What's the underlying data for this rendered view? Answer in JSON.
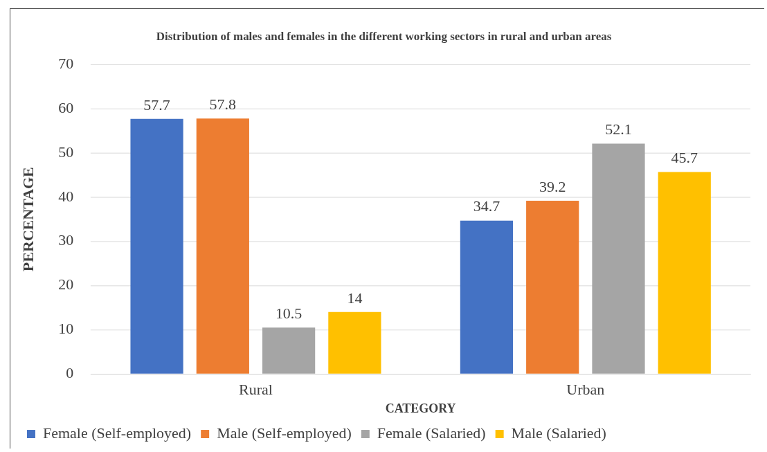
{
  "chart_data": {
    "type": "bar",
    "title": "Distribution of males and females in the different working sectors in rural and urban areas",
    "xlabel": "CATEGORY",
    "ylabel": "PERCENTAGE",
    "categories": [
      "Rural",
      "Urban"
    ],
    "series": [
      {
        "name": "Female (Self-employed)",
        "color": "#4472c4",
        "values": [
          57.7,
          34.7
        ]
      },
      {
        "name": "Male (Self-employed)",
        "color": "#ed7d31",
        "values": [
          57.8,
          39.2
        ]
      },
      {
        "name": "Female (Salaried)",
        "color": "#a5a5a5",
        "values": [
          10.5,
          52.1
        ]
      },
      {
        "name": "Male (Salaried)",
        "color": "#ffc000",
        "values": [
          14,
          45.7
        ]
      }
    ],
    "ylim": [
      0,
      70
    ],
    "yticks": [
      0,
      10,
      20,
      30,
      40,
      50,
      60,
      70
    ],
    "grid": "y",
    "legend": "bottom",
    "data_labels": true
  }
}
